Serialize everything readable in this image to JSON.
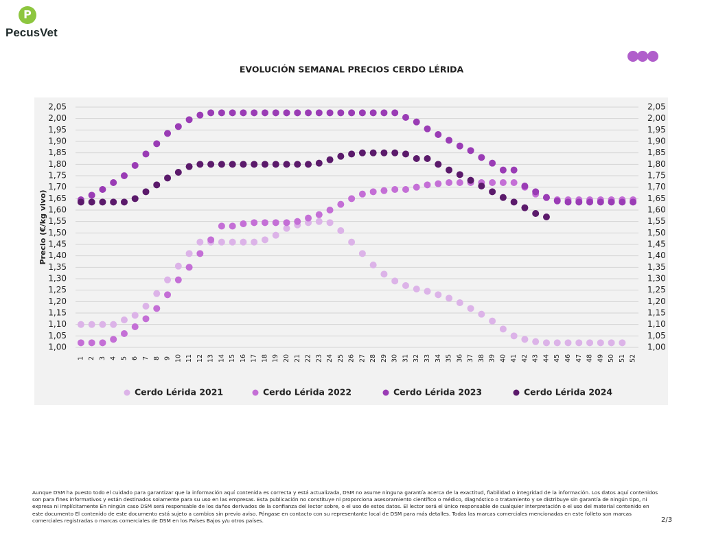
{
  "header": {
    "logo_text": "PecusVet"
  },
  "chart_data": {
    "type": "scatter",
    "title": "EVOLUCIÓN SEMANAL PRECIOS CERDO LÉRIDA",
    "y_label": "Precio (€/kg vivo)",
    "categories": [
      "1",
      "2",
      "3",
      "4",
      "5",
      "6",
      "7",
      "8",
      "9",
      "10",
      "11",
      "12",
      "13",
      "14",
      "15",
      "16",
      "17",
      "18",
      "19",
      "20",
      "21",
      "22",
      "23",
      "24",
      "25",
      "26",
      "27",
      "28",
      "29",
      "30",
      "31",
      "32",
      "33",
      "34",
      "35",
      "36",
      "37",
      "38",
      "39",
      "40",
      "41",
      "42",
      "43",
      "44",
      "45",
      "46",
      "47",
      "48",
      "49",
      "50",
      "51",
      "52"
    ],
    "ylim": [
      1.0,
      2.05
    ],
    "yticks": [
      {
        "value": 1.0,
        "label": "1,00"
      },
      {
        "value": 1.05,
        "label": "1,05"
      },
      {
        "value": 1.1,
        "label": "1,10"
      },
      {
        "value": 1.15,
        "label": "1,15"
      },
      {
        "value": 1.2,
        "label": "1,20"
      },
      {
        "value": 1.25,
        "label": "1,25"
      },
      {
        "value": 1.3,
        "label": "1,30"
      },
      {
        "value": 1.35,
        "label": "1,35"
      },
      {
        "value": 1.4,
        "label": "1,40"
      },
      {
        "value": 1.45,
        "label": "1,45"
      },
      {
        "value": 1.5,
        "label": "1,50"
      },
      {
        "value": 1.55,
        "label": "1,55"
      },
      {
        "value": 1.6,
        "label": "1,60"
      },
      {
        "value": 1.65,
        "label": "1,65"
      },
      {
        "value": 1.7,
        "label": "1,70"
      },
      {
        "value": 1.75,
        "label": "1,75"
      },
      {
        "value": 1.8,
        "label": "1,80"
      },
      {
        "value": 1.85,
        "label": "1,85"
      },
      {
        "value": 1.9,
        "label": "1,90"
      },
      {
        "value": 1.95,
        "label": "1,95"
      },
      {
        "value": 2.0,
        "label": "2,00"
      },
      {
        "value": 2.05,
        "label": "2,05"
      }
    ],
    "grid": true,
    "legend": "bottom",
    "series": [
      {
        "name": "Cerdo Lérida 2021",
        "color": "#dcb3e8",
        "values": [
          1.1,
          1.1,
          1.1,
          1.1,
          1.12,
          1.14,
          1.18,
          1.235,
          1.295,
          1.355,
          1.41,
          1.46,
          1.46,
          1.46,
          1.46,
          1.46,
          1.46,
          1.47,
          1.49,
          1.52,
          1.535,
          1.545,
          1.55,
          1.545,
          1.51,
          1.46,
          1.41,
          1.36,
          1.32,
          1.29,
          1.27,
          1.255,
          1.245,
          1.23,
          1.215,
          1.195,
          1.17,
          1.145,
          1.115,
          1.08,
          1.05,
          1.035,
          1.025,
          1.02,
          1.02,
          1.02,
          1.02,
          1.02,
          1.02,
          1.02,
          1.02,
          null
        ]
      },
      {
        "name": "Cerdo Lérida 2022",
        "color": "#c46fd6",
        "values": [
          1.02,
          1.02,
          1.02,
          1.035,
          1.06,
          1.09,
          1.125,
          1.17,
          1.23,
          1.295,
          1.35,
          1.41,
          1.47,
          1.53,
          1.53,
          1.54,
          1.545,
          1.545,
          1.545,
          1.545,
          1.55,
          1.565,
          1.58,
          1.6,
          1.625,
          1.65,
          1.67,
          1.68,
          1.685,
          1.69,
          1.69,
          1.7,
          1.71,
          1.715,
          1.72,
          1.72,
          1.72,
          1.72,
          1.72,
          1.72,
          1.72,
          1.7,
          1.67,
          1.655,
          1.645,
          1.645,
          1.645,
          1.645,
          1.645,
          1.645,
          1.645,
          1.645
        ]
      },
      {
        "name": "Cerdo Lérida 2023",
        "color": "#9a3cb5",
        "values": [
          1.645,
          1.665,
          1.69,
          1.72,
          1.75,
          1.795,
          1.845,
          1.89,
          1.935,
          1.965,
          1.995,
          2.015,
          2.025,
          2.025,
          2.025,
          2.025,
          2.025,
          2.025,
          2.025,
          2.025,
          2.025,
          2.025,
          2.025,
          2.025,
          2.025,
          2.025,
          2.025,
          2.025,
          2.025,
          2.025,
          2.005,
          1.985,
          1.955,
          1.93,
          1.905,
          1.88,
          1.86,
          1.83,
          1.805,
          1.775,
          1.775,
          1.705,
          1.68,
          1.655,
          1.64,
          1.635,
          1.635,
          1.635,
          1.635,
          1.635,
          1.635,
          1.635
        ]
      },
      {
        "name": "Cerdo Lérida 2024",
        "color": "#5b1a6b",
        "values": [
          1.635,
          1.635,
          1.635,
          1.635,
          1.635,
          1.65,
          1.68,
          1.71,
          1.74,
          1.765,
          1.79,
          1.8,
          1.8,
          1.8,
          1.8,
          1.8,
          1.8,
          1.8,
          1.8,
          1.8,
          1.8,
          1.8,
          1.805,
          1.82,
          1.835,
          1.845,
          1.85,
          1.85,
          1.85,
          1.85,
          1.845,
          1.825,
          1.825,
          1.8,
          1.775,
          1.755,
          1.73,
          1.705,
          1.68,
          1.655,
          1.635,
          1.61,
          1.585,
          1.57,
          null,
          null,
          null,
          null,
          null,
          null,
          null,
          null
        ]
      }
    ]
  },
  "footer": {
    "disclaimer": "Aunque DSM ha puesto todo el cuidado para garantizar que la información aquí contenida es correcta y está actualizada, DSM no asume ninguna garantía acerca de la exactitud, fiabilidad o integridad de la información. Los datos aquí contenidos son para fines informativos y están destinados solamente para su uso en las empresas. Esta publicación no constituye ni proporciona asesoramiento científico o médico, diagnóstico o tratamiento y se distribuye sin garantía de ningún tipo, ni expresa ni implícitamente En ningún caso DSM será responsable de los daños derivados de la confianza del lector sobre, o el uso de estos datos. El lector será el único responsable de cualquier interpretación o el uso del material contenido en este documento El contenido de este documento está sujeto a cambios sin previo aviso. Póngase en contacto con su representante local de DSM para más detalles. Todas las marcas comerciales mencionadas en este folleto son marcas comerciales registradas o marcas comerciales de DSM en los Países Bajos y/u otros países.",
    "page": "2/3"
  }
}
